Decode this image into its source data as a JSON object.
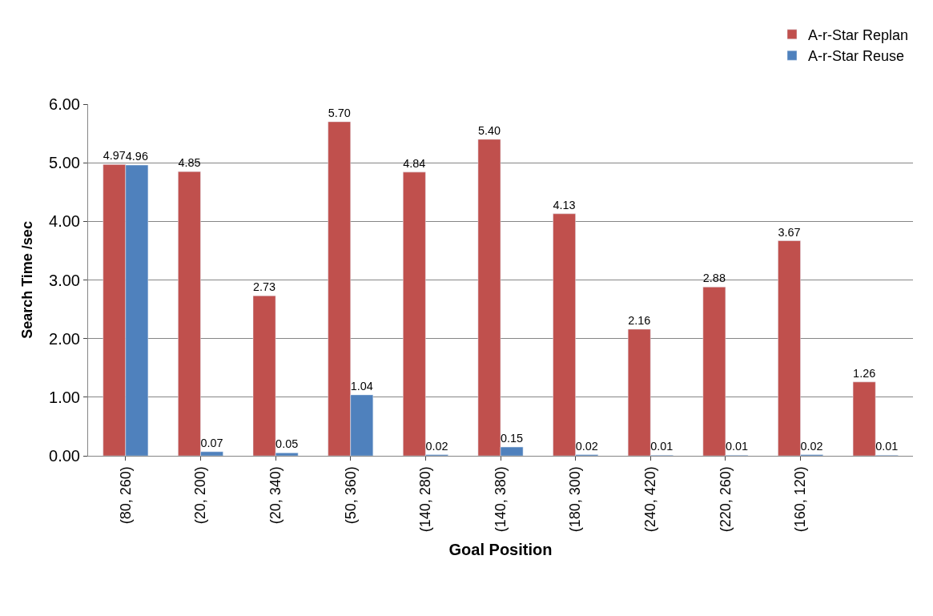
{
  "chart_data": {
    "type": "bar",
    "xlabel": "Goal Position",
    "ylabel": "Search Time /sec",
    "categories": [
      "(80, 260)",
      "(20, 200)",
      "(20, 340)",
      "(50, 360)",
      "(140, 280)",
      "(140, 380)",
      "(180, 300)",
      "(240, 420)",
      "(220, 260)",
      "(160, 120)",
      null
    ],
    "series": [
      {
        "name": "A-r-Star Replan",
        "color": "#c0504d",
        "values": [
          4.97,
          4.85,
          2.73,
          5.7,
          4.84,
          5.4,
          4.13,
          2.16,
          2.88,
          3.67,
          1.26
        ],
        "value_labels": [
          "4.97",
          "4.85",
          "2.73",
          "5.70",
          "4.84",
          "5.40",
          "4.13",
          "2.16",
          "2.88",
          "3.67",
          "1.26"
        ]
      },
      {
        "name": "A-r-Star Reuse",
        "color": "#4f81bd",
        "values": [
          4.96,
          0.07,
          0.05,
          1.04,
          0.02,
          0.15,
          0.02,
          0.01,
          0.01,
          0.02,
          0.01
        ],
        "value_labels": [
          "4.96",
          "0.07",
          "0.05",
          "1.04",
          "0.02",
          "0.15",
          "0.02",
          "0.01",
          "0.01",
          "0.02",
          "0.01"
        ]
      }
    ],
    "ylim": [
      0,
      6
    ],
    "yticks": [
      {
        "value": 0,
        "label": "0.00"
      },
      {
        "value": 1,
        "label": "1.00"
      },
      {
        "value": 2,
        "label": "2.00"
      },
      {
        "value": 3,
        "label": "3.00"
      },
      {
        "value": 4,
        "label": "4.00"
      },
      {
        "value": 5,
        "label": "5.00"
      },
      {
        "value": 6,
        "label": "6.00"
      }
    ],
    "grid": "y",
    "legend": "top right"
  }
}
